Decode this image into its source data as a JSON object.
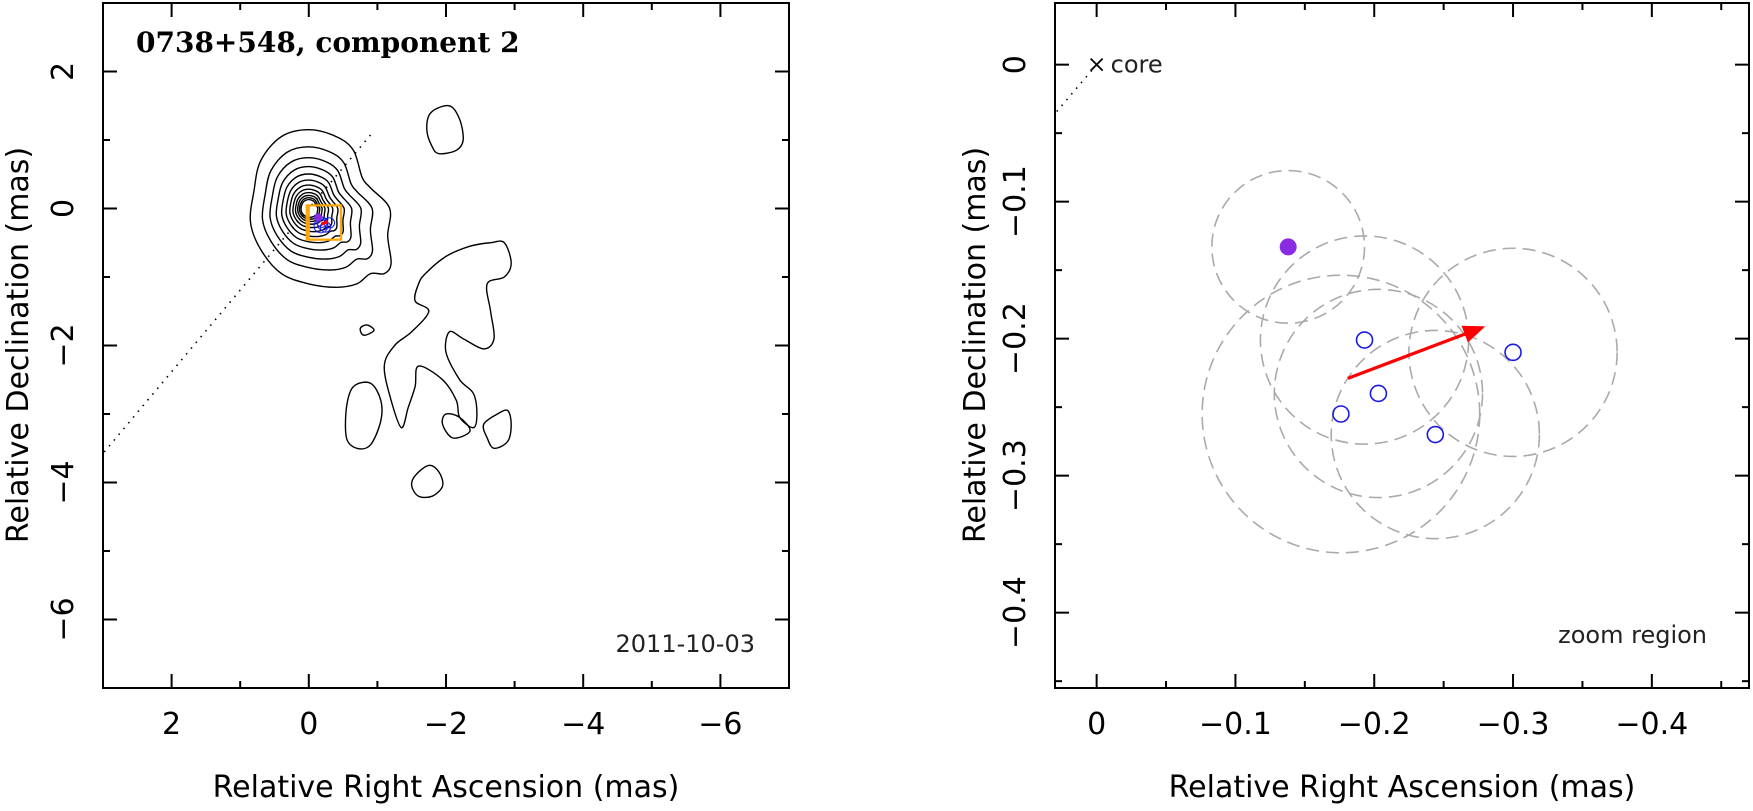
{
  "colors": {
    "contour": "#000000",
    "zoom_box": "#ffa500",
    "arrow": "#ff0000",
    "filled_point": "#8a2be2",
    "component_circles": "#1a1ae6",
    "dashed_circles": "#aaaaaa"
  },
  "chart_data": [
    {
      "type": "contour",
      "title": "0738+548, component 2",
      "xlabel": "Relative Right Ascension (mas)",
      "ylabel": "Relative Declination (mas)",
      "xlim": [
        3,
        -7
      ],
      "ylim": [
        -7,
        3
      ],
      "xticks": [
        2,
        0,
        -2,
        -4,
        -6
      ],
      "yticks": [
        2,
        0,
        -2,
        -4,
        -6
      ],
      "xtick_labels": [
        "2",
        "0",
        "−2",
        "−4",
        "−6"
      ],
      "ytick_labels": [
        "2",
        "0",
        "−2",
        "−4",
        "−6"
      ],
      "epoch": "2011-10-03",
      "core": [
        0,
        0
      ],
      "contour_levels": 12,
      "main_contour": [
        [
          0.8,
          0.25
        ],
        [
          0.7,
          0.7
        ],
        [
          0.4,
          1.05
        ],
        [
          0,
          1.15
        ],
        [
          -0.4,
          1.05
        ],
        [
          -0.65,
          0.85
        ],
        [
          -0.78,
          0.45
        ],
        [
          -0.9,
          0.3
        ],
        [
          -1.18,
          0.0
        ],
        [
          -1.15,
          -0.4
        ],
        [
          -1.2,
          -0.8
        ],
        [
          -1.1,
          -0.95
        ],
        [
          -0.9,
          -0.95
        ],
        [
          -0.7,
          -1.1
        ],
        [
          -0.4,
          -1.15
        ],
        [
          0,
          -1.1
        ],
        [
          0.4,
          -0.95
        ],
        [
          0.7,
          -0.6
        ],
        [
          0.85,
          -0.2
        ]
      ],
      "islands": [
        [
          [
            -1.78,
            1.4
          ],
          [
            -2.05,
            1.5
          ],
          [
            -2.2,
            1.3
          ],
          [
            -2.25,
            1.0
          ],
          [
            -2.15,
            0.85
          ],
          [
            -1.9,
            0.8
          ],
          [
            -1.8,
            0.9
          ],
          [
            -1.72,
            1.15
          ]
        ],
        [
          [
            -1.6,
            -1.1
          ],
          [
            -1.7,
            -0.95
          ],
          [
            -2.0,
            -0.7
          ],
          [
            -2.35,
            -0.55
          ],
          [
            -2.65,
            -0.5
          ],
          [
            -2.85,
            -0.5
          ],
          [
            -2.95,
            -0.8
          ],
          [
            -2.85,
            -1.0
          ],
          [
            -2.6,
            -1.1
          ],
          [
            -2.65,
            -1.5
          ],
          [
            -2.7,
            -1.9
          ],
          [
            -2.55,
            -2.05
          ],
          [
            -2.25,
            -1.9
          ],
          [
            -2.05,
            -1.8
          ],
          [
            -2.0,
            -2.1
          ],
          [
            -2.2,
            -2.5
          ],
          [
            -2.4,
            -2.7
          ],
          [
            -2.45,
            -3.0
          ],
          [
            -2.4,
            -3.2
          ],
          [
            -2.2,
            -3.05
          ],
          [
            -2.15,
            -2.8
          ],
          [
            -1.95,
            -2.5
          ],
          [
            -1.6,
            -2.3
          ],
          [
            -1.55,
            -2.6
          ],
          [
            -1.45,
            -2.9
          ],
          [
            -1.35,
            -3.2
          ],
          [
            -1.2,
            -2.8
          ],
          [
            -1.1,
            -2.3
          ],
          [
            -1.25,
            -2.0
          ],
          [
            -1.5,
            -1.8
          ],
          [
            -1.75,
            -1.5
          ],
          [
            -1.55,
            -1.35
          ]
        ],
        [
          [
            -0.65,
            -2.6
          ],
          [
            -0.9,
            -2.55
          ],
          [
            -1.05,
            -2.8
          ],
          [
            -1.05,
            -3.1
          ],
          [
            -0.9,
            -3.45
          ],
          [
            -0.7,
            -3.5
          ],
          [
            -0.55,
            -3.35
          ],
          [
            -0.55,
            -2.9
          ]
        ],
        [
          [
            -1.55,
            -3.9
          ],
          [
            -1.75,
            -3.75
          ],
          [
            -1.9,
            -3.85
          ],
          [
            -1.95,
            -4.05
          ],
          [
            -1.8,
            -4.2
          ],
          [
            -1.6,
            -4.2
          ],
          [
            -1.5,
            -4.05
          ]
        ],
        [
          [
            -2.55,
            -3.15
          ],
          [
            -2.75,
            -3.0
          ],
          [
            -2.9,
            -2.95
          ],
          [
            -2.95,
            -3.15
          ],
          [
            -2.9,
            -3.4
          ],
          [
            -2.7,
            -3.5
          ],
          [
            -2.6,
            -3.35
          ]
        ],
        [
          [
            -2.0,
            -3.0
          ],
          [
            -2.2,
            -3.05
          ],
          [
            -2.35,
            -3.25
          ],
          [
            -2.1,
            -3.35
          ],
          [
            -1.95,
            -3.15
          ]
        ],
        [
          [
            -0.75,
            -1.75
          ],
          [
            -0.85,
            -1.7
          ],
          [
            -0.95,
            -1.78
          ],
          [
            -0.8,
            -1.85
          ]
        ]
      ]
    },
    {
      "type": "scatter",
      "title": "",
      "xlabel": "Relative Right Ascension (mas)",
      "ylabel": "Relative Declination (mas)",
      "xlim": [
        0.03,
        -0.47
      ],
      "ylim": [
        -0.455,
        0.045
      ],
      "xticks": [
        0,
        -0.1,
        -0.2,
        -0.3,
        -0.4
      ],
      "yticks": [
        0,
        -0.1,
        -0.2,
        -0.3,
        -0.4
      ],
      "xtick_labels": [
        "0",
        "−0.1",
        "−0.2",
        "−0.3",
        "−0.4"
      ],
      "ytick_labels": [
        "0",
        "−0.1",
        "−0.2",
        "−0.3",
        "−0.4"
      ],
      "core_label": "core",
      "zoom_label": "zoom region",
      "filled_point": {
        "x": -0.138,
        "y": -0.133
      },
      "points": [
        {
          "x": -0.193,
          "y": -0.201
        },
        {
          "x": -0.203,
          "y": -0.24
        },
        {
          "x": -0.176,
          "y": -0.255
        },
        {
          "x": -0.244,
          "y": -0.27
        },
        {
          "x": -0.3,
          "y": -0.21
        }
      ],
      "dashed_circles": [
        {
          "x": -0.138,
          "y": -0.133,
          "r": 0.055
        },
        {
          "x": -0.193,
          "y": -0.201,
          "r": 0.075
        },
        {
          "x": -0.203,
          "y": -0.24,
          "r": 0.075
        },
        {
          "x": -0.176,
          "y": -0.255,
          "r": 0.1
        },
        {
          "x": -0.244,
          "y": -0.27,
          "r": 0.075
        },
        {
          "x": -0.3,
          "y": -0.21,
          "r": 0.075
        }
      ],
      "arrow": {
        "x0": -0.181,
        "y0": -0.229,
        "x1": -0.28,
        "y1": -0.191
      },
      "trajectory_pa_deg": 140
    }
  ]
}
